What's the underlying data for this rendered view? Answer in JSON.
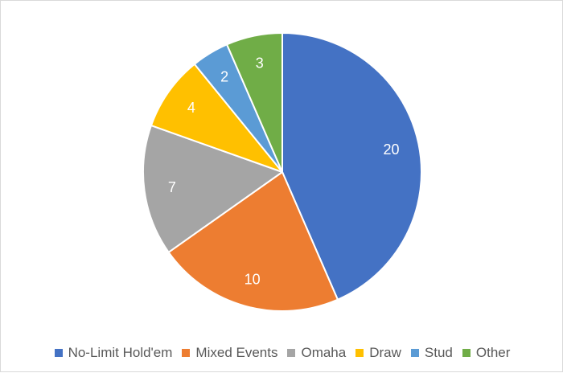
{
  "chart_data": {
    "type": "pie",
    "title": "",
    "categories": [
      "No-Limit Hold'em",
      "Mixed Events",
      "Omaha",
      "Draw",
      "Stud",
      "Other"
    ],
    "values": [
      20,
      10,
      7,
      4,
      2,
      3
    ],
    "colors": [
      "#4472C4",
      "#ED7D31",
      "#A5A5A5",
      "#FFC000",
      "#5B9BD5",
      "#70AD47"
    ],
    "data_labels": [
      "20",
      "10",
      "7",
      "4",
      "2",
      "3"
    ],
    "legend_position": "bottom",
    "start_angle_deg": 0,
    "direction": "clockwise"
  }
}
